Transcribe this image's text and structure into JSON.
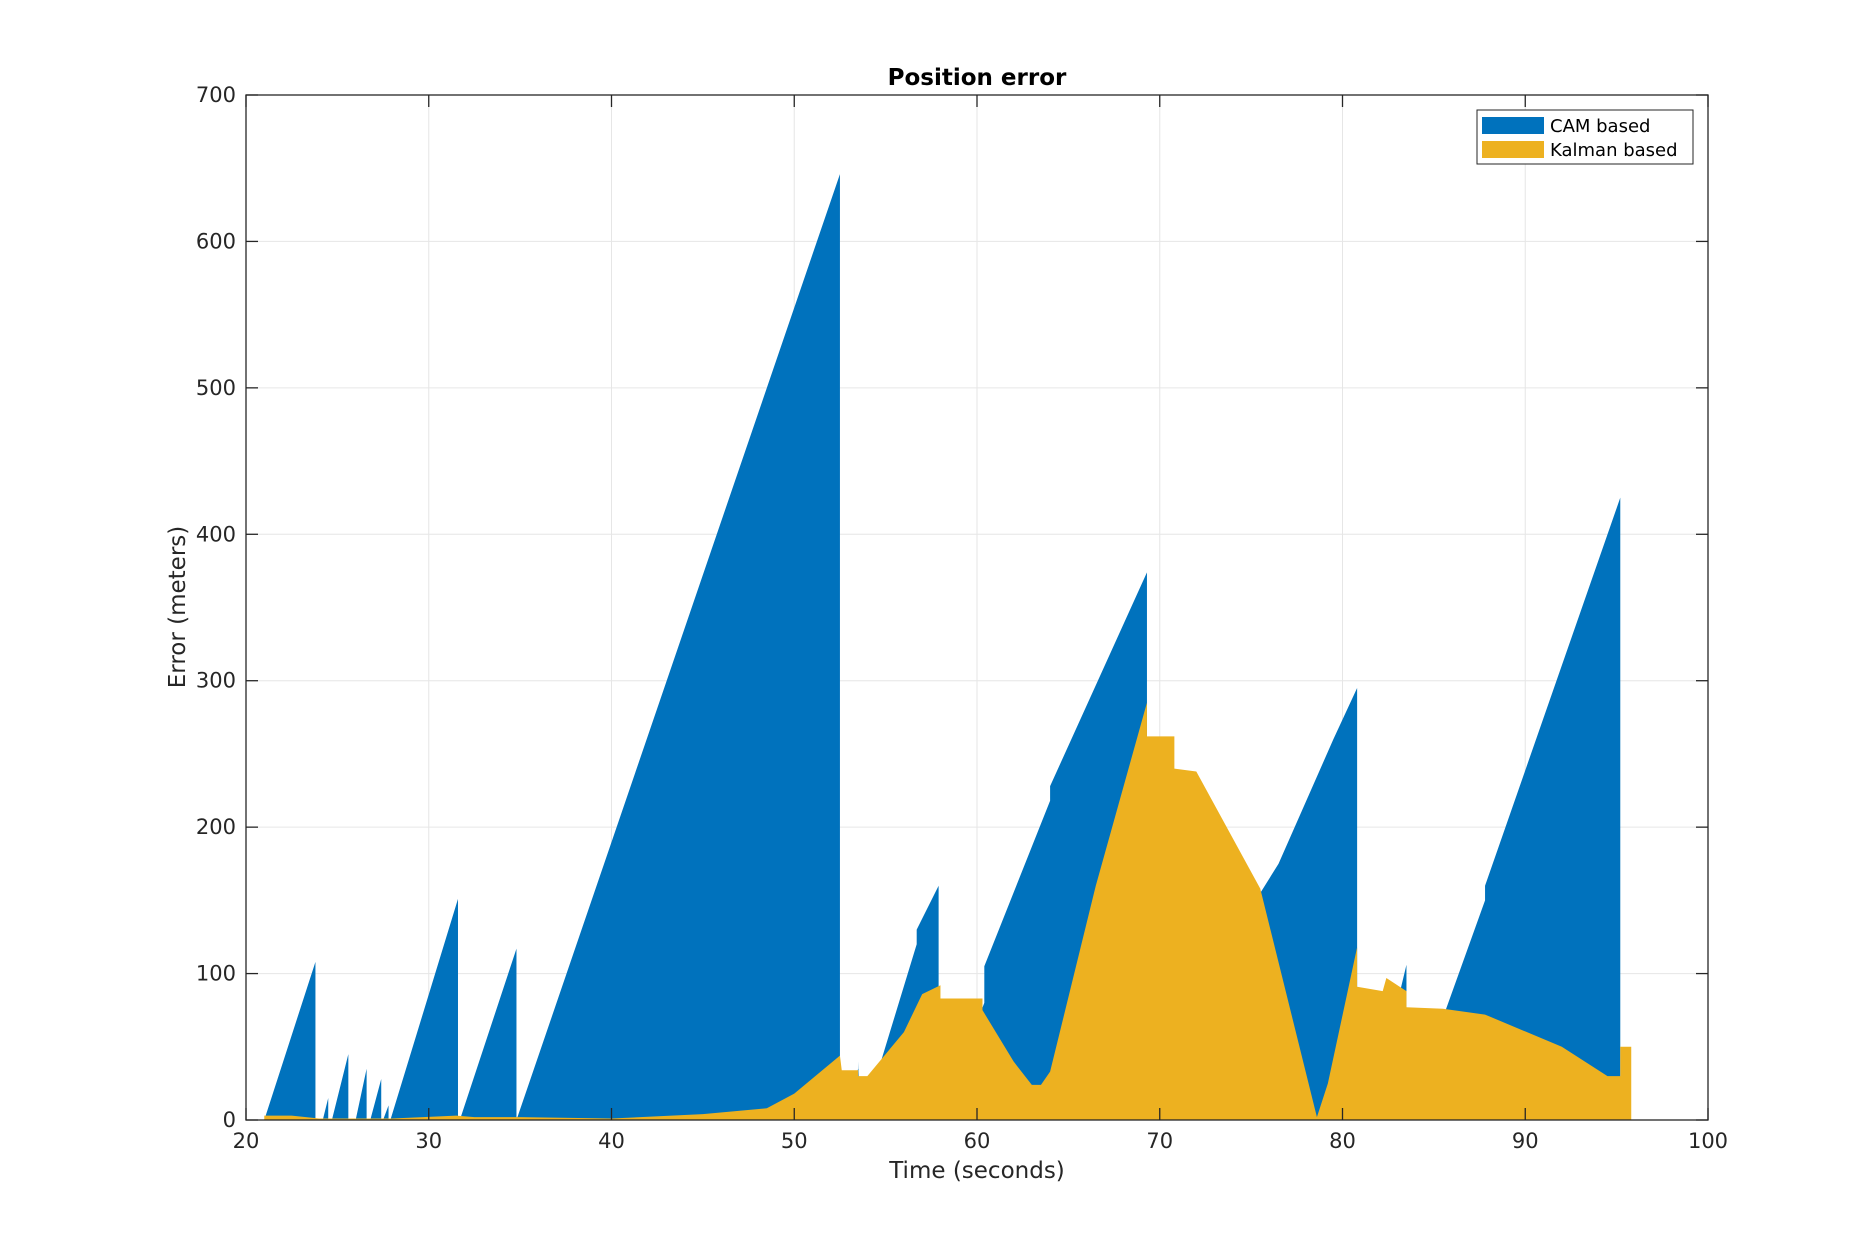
{
  "chart_data": {
    "type": "area",
    "title": "Position error",
    "xlabel": "Time (seconds)",
    "ylabel": "Error (meters)",
    "xlim": [
      20,
      100
    ],
    "ylim": [
      0,
      700
    ],
    "xticks": [
      20,
      30,
      40,
      50,
      60,
      70,
      80,
      90,
      100
    ],
    "yticks": [
      0,
      100,
      200,
      300,
      400,
      500,
      600,
      700
    ],
    "grid": true,
    "legend_position": "top-right",
    "series": [
      {
        "name": "CAM based",
        "color": "#0072BD",
        "points": [
          [
            21.0,
            0
          ],
          [
            23.8,
            108
          ],
          [
            23.8,
            0
          ],
          [
            24.2,
            0
          ],
          [
            24.5,
            15
          ],
          [
            24.5,
            0
          ],
          [
            24.7,
            0
          ],
          [
            25.6,
            45
          ],
          [
            25.6,
            0
          ],
          [
            26.0,
            0
          ],
          [
            26.6,
            35
          ],
          [
            26.6,
            0
          ],
          [
            26.8,
            0
          ],
          [
            27.4,
            28
          ],
          [
            27.4,
            0
          ],
          [
            27.5,
            0
          ],
          [
            27.8,
            10
          ],
          [
            27.8,
            0
          ],
          [
            27.9,
            0
          ],
          [
            31.6,
            151
          ],
          [
            31.6,
            0
          ],
          [
            31.7,
            0
          ],
          [
            34.8,
            117
          ],
          [
            34.8,
            0
          ],
          [
            34.8,
            0
          ],
          [
            48.5,
            500
          ],
          [
            52.5,
            646
          ],
          [
            52.5,
            0
          ],
          [
            53.5,
            35
          ],
          [
            53.5,
            40
          ],
          [
            53.6,
            0
          ],
          [
            54.5,
            30
          ],
          [
            56.7,
            120
          ],
          [
            56.7,
            130
          ],
          [
            57.9,
            160
          ],
          [
            57.9,
            0
          ],
          [
            60.4,
            80
          ],
          [
            60.4,
            105
          ],
          [
            64.0,
            218
          ],
          [
            64.0,
            228
          ],
          [
            69.3,
            374
          ],
          [
            69.3,
            0
          ],
          [
            75.5,
            155
          ],
          [
            76.5,
            175
          ],
          [
            79.5,
            260
          ],
          [
            80.8,
            295
          ],
          [
            80.8,
            0
          ],
          [
            83.0,
            80
          ],
          [
            83.5,
            106
          ],
          [
            83.5,
            0
          ],
          [
            85.5,
            70
          ],
          [
            87.8,
            150
          ],
          [
            87.8,
            160
          ],
          [
            95.2,
            425
          ],
          [
            95.2,
            0
          ]
        ]
      },
      {
        "name": "Kalman based",
        "color": "#EDB120",
        "points": [
          [
            21.0,
            3
          ],
          [
            22.5,
            3
          ],
          [
            24.0,
            1
          ],
          [
            26.0,
            1
          ],
          [
            28.0,
            1
          ],
          [
            31.5,
            3
          ],
          [
            32.5,
            2
          ],
          [
            35.0,
            2
          ],
          [
            40.0,
            1
          ],
          [
            45.0,
            4
          ],
          [
            48.5,
            8
          ],
          [
            50.0,
            18
          ],
          [
            52.5,
            44
          ],
          [
            52.6,
            34
          ],
          [
            53.5,
            34
          ],
          [
            53.5,
            30
          ],
          [
            54.0,
            30
          ],
          [
            56.0,
            60
          ],
          [
            57.0,
            86
          ],
          [
            58.0,
            92
          ],
          [
            58.0,
            83
          ],
          [
            60.3,
            83
          ],
          [
            60.3,
            75
          ],
          [
            62.0,
            40
          ],
          [
            63.0,
            24
          ],
          [
            63.5,
            24
          ],
          [
            64.0,
            33
          ],
          [
            66.5,
            160
          ],
          [
            69.3,
            285
          ],
          [
            69.3,
            262
          ],
          [
            70.8,
            262
          ],
          [
            70.8,
            240
          ],
          [
            72.0,
            238
          ],
          [
            75.5,
            158
          ],
          [
            78.6,
            2
          ],
          [
            79.2,
            25
          ],
          [
            80.8,
            118
          ],
          [
            80.8,
            91
          ],
          [
            82.2,
            88
          ],
          [
            82.4,
            97
          ],
          [
            83.5,
            88
          ],
          [
            83.5,
            77
          ],
          [
            85.5,
            76
          ],
          [
            87.8,
            72
          ],
          [
            92.0,
            50
          ],
          [
            94.5,
            30
          ],
          [
            95.2,
            30
          ],
          [
            95.2,
            50
          ],
          [
            95.8,
            50
          ],
          [
            95.8,
            0
          ]
        ]
      }
    ]
  }
}
